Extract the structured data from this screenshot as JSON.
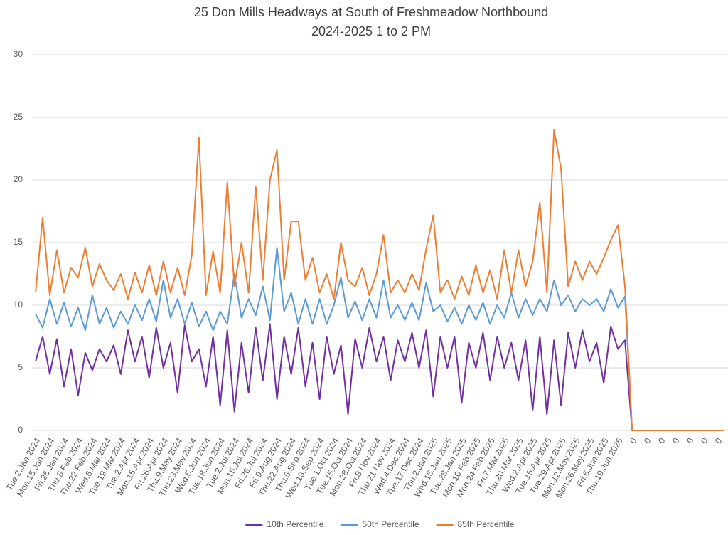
{
  "chart_data": {
    "type": "line",
    "title": "25 Don Mills Headways at South of Freshmeadow Northbound",
    "subtitle": "2024-2025 1 to 2 PM",
    "categories": [
      "Tue.2.Jan.2024",
      null,
      "Mon.15.Jan.2024",
      null,
      "Fri.26.Jan.2024",
      null,
      "Thu.8.Feb.2024",
      null,
      "Thu.22.Feb.2024",
      null,
      "Wed.6.Mar.2024",
      null,
      "Tue.19.Mar.2024",
      null,
      "Tue.2.Apr.2024",
      null,
      "Mon.15.Apr.2024",
      null,
      "Fri.26.Apr.2024",
      null,
      "Thu.9.May.2024",
      null,
      "Thu.23.May.2024",
      null,
      "Wed.5.Jun.2024",
      null,
      "Tue.18.Jun.2024",
      null,
      "Tue.2.Jul.2024",
      null,
      "Mon.15.Jul.2024",
      null,
      "Fri.26.Jul.2024",
      null,
      "Fri.9.Aug.2024",
      null,
      "Thu.22.Aug.2024",
      null,
      "Thu.5.Sep.2024",
      null,
      "Wed.18.Sep.2024",
      null,
      "Tue.1.Oct.2024",
      null,
      "Tue.15.Oct.2024",
      null,
      "Mon.28.Oct.2024",
      null,
      "Fri.8.Nov.2024",
      null,
      "Thu.21.Nov.2024",
      null,
      "Wed.4.Dec.2024",
      null,
      "Tue.17.Dec.2024",
      null,
      "Thu.2.Jan.2025",
      null,
      "Wed.15.Jan.2025",
      null,
      "Tue.28.Jan.2025",
      null,
      "Mon.10.Feb.2025",
      null,
      "Mon.24.Feb.2025",
      null,
      "Fri.7.Mar.2025",
      null,
      "Thu.20.Mar.2025",
      null,
      "Wed.2.Apr.2025",
      null,
      "Tue.15.Apr.2025",
      null,
      "Tue.29.Apr.2025",
      null,
      "Mon.12.May.2025",
      null,
      "Mon.26.May.2025",
      null,
      "Fri.6.Jun.2025",
      null,
      "Thu.19.Jun.2025",
      null,
      "0",
      null,
      "0",
      null,
      "0",
      null,
      "0",
      null,
      "0",
      null,
      "0",
      null,
      "0",
      null
    ],
    "series": [
      {
        "name": "10th Percentile",
        "color": "#7030a0",
        "values": [
          5.5,
          7.5,
          4.5,
          7.3,
          3.5,
          6.5,
          2.8,
          6.2,
          4.8,
          6.5,
          5.5,
          6.8,
          4.5,
          8,
          5.5,
          7.5,
          4.2,
          8.2,
          5,
          7,
          3,
          8.4,
          5.5,
          6.5,
          3.5,
          7.5,
          2,
          8,
          1.5,
          7,
          3,
          8.2,
          4,
          8.5,
          2.5,
          7.5,
          4.5,
          8.2,
          3.5,
          7,
          2.5,
          7.5,
          4.5,
          6.8,
          1.3,
          7.3,
          5,
          8.2,
          5.5,
          7.5,
          4,
          7.2,
          5.5,
          7.8,
          5,
          8,
          2.7,
          7.5,
          5,
          7.5,
          2.2,
          7,
          5,
          7.8,
          4,
          7.5,
          5,
          7,
          4,
          7.2,
          1.6,
          7.5,
          1.3,
          7.2,
          2,
          7.8,
          5,
          8,
          5.5,
          7,
          3.8,
          8.3,
          6.5,
          7.2,
          0,
          0,
          0,
          0,
          0,
          0,
          0,
          0,
          0,
          0,
          0,
          0,
          0,
          0
        ]
      },
      {
        "name": "50th Percentile",
        "color": "#5b9bd5",
        "values": [
          9.3,
          8.2,
          10.5,
          8.5,
          10.2,
          8.3,
          9.8,
          8,
          10.8,
          8.5,
          9.8,
          8.2,
          9.5,
          8.5,
          10,
          8.8,
          10.5,
          8.7,
          12,
          9,
          10.5,
          8.5,
          10.2,
          8.3,
          9.5,
          8,
          9.5,
          8.5,
          12.5,
          9,
          10.5,
          9.2,
          11.5,
          8.8,
          14.6,
          9.5,
          11,
          8.5,
          10.5,
          8.5,
          10.5,
          8.5,
          10,
          12.2,
          9,
          10.3,
          8.8,
          10.5,
          9,
          12,
          9,
          10,
          8.8,
          10.2,
          8.8,
          11.8,
          9.5,
          10,
          8.7,
          9.8,
          8.5,
          10,
          8.8,
          10.2,
          8.5,
          10,
          9,
          11,
          9,
          10.5,
          9.2,
          10.5,
          9.5,
          12,
          10,
          10.8,
          9.5,
          10.5,
          10,
          10.5,
          9.5,
          11.3,
          9.8,
          10.7,
          0,
          0,
          0,
          0,
          0,
          0,
          0,
          0,
          0,
          0,
          0,
          0,
          0,
          0
        ]
      },
      {
        "name": "85th Percentile",
        "color": "#ed7d31",
        "values": [
          11,
          17,
          10.8,
          14.4,
          11,
          13,
          12.2,
          14.6,
          11.5,
          13.3,
          12,
          11.2,
          12.5,
          10.5,
          12.6,
          11,
          13.2,
          10.8,
          13.5,
          11,
          13,
          10.8,
          14,
          23.4,
          10.8,
          14.3,
          11,
          19.8,
          11.5,
          15,
          11,
          19.5,
          12,
          20,
          22.4,
          12,
          16.7,
          16.7,
          12,
          13.8,
          11,
          12.5,
          10.5,
          15,
          12,
          11.5,
          13,
          10.8,
          12.5,
          15.6,
          11,
          12,
          11,
          12.5,
          11.2,
          14.5,
          17.2,
          11,
          12,
          10.5,
          12.3,
          10.8,
          13.2,
          11,
          12.8,
          10.5,
          14.4,
          11,
          14.4,
          11.5,
          13.5,
          18.2,
          11,
          24,
          20.9,
          11.5,
          13.5,
          12,
          13.5,
          12.5,
          13.8,
          15.2,
          16.4,
          11.5,
          0,
          0,
          0,
          0,
          0,
          0,
          0,
          0,
          0,
          0,
          0,
          0,
          0,
          0
        ]
      }
    ],
    "ylim": [
      0,
      30
    ],
    "yticks": [
      0,
      5,
      10,
      15,
      20,
      25,
      30
    ],
    "grid": true,
    "legend": "bottom"
  }
}
